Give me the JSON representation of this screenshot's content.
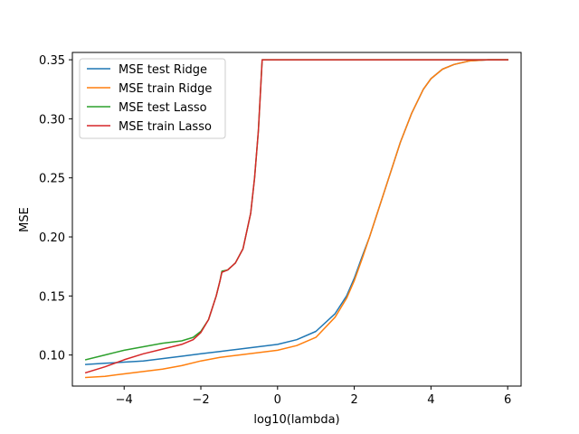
{
  "chart_data": {
    "type": "line",
    "title": "",
    "xlabel": "log10(lambda)",
    "ylabel": "MSE",
    "xlim": [
      -5.35,
      6.35
    ],
    "ylim": [
      0.0737,
      0.3562
    ],
    "xticks": [
      -4,
      -2,
      0,
      2,
      4,
      6
    ],
    "xtick_labels": [
      "−4",
      "−2",
      "0",
      "2",
      "4",
      "6"
    ],
    "yticks": [
      0.1,
      0.15,
      0.2,
      0.25,
      0.3,
      0.35
    ],
    "ytick_labels": [
      "0.10",
      "0.15",
      "0.20",
      "0.25",
      "0.30",
      "0.35"
    ],
    "grid": false,
    "legend_position": "top-left",
    "series": [
      {
        "name": "MSE test Ridge",
        "color": "#1f77b4",
        "x": [
          -5.0,
          -4.5,
          -4.0,
          -3.5,
          -3.0,
          -2.5,
          -2.0,
          -1.5,
          -1.0,
          -0.5,
          0.0,
          0.5,
          1.0,
          1.5,
          1.8,
          2.0,
          2.2,
          2.4,
          2.6,
          2.8,
          3.0,
          3.2,
          3.5,
          3.8,
          4.0,
          4.3,
          4.6,
          5.0,
          5.5,
          6.0
        ],
        "y": [
          0.092,
          0.093,
          0.094,
          0.095,
          0.097,
          0.099,
          0.101,
          0.103,
          0.105,
          0.107,
          0.109,
          0.113,
          0.12,
          0.135,
          0.15,
          0.165,
          0.183,
          0.2,
          0.22,
          0.24,
          0.26,
          0.28,
          0.305,
          0.325,
          0.334,
          0.342,
          0.346,
          0.349,
          0.35,
          0.35
        ]
      },
      {
        "name": "MSE train Ridge",
        "color": "#ff7f0e",
        "x": [
          -5.0,
          -4.5,
          -4.0,
          -3.5,
          -3.0,
          -2.5,
          -2.0,
          -1.5,
          -1.0,
          -0.5,
          0.0,
          0.5,
          1.0,
          1.5,
          1.8,
          2.0,
          2.2,
          2.4,
          2.6,
          2.8,
          3.0,
          3.2,
          3.5,
          3.8,
          4.0,
          4.3,
          4.6,
          5.0,
          5.5,
          6.0
        ],
        "y": [
          0.081,
          0.082,
          0.084,
          0.086,
          0.088,
          0.091,
          0.095,
          0.098,
          0.1,
          0.102,
          0.104,
          0.108,
          0.115,
          0.132,
          0.148,
          0.163,
          0.181,
          0.2,
          0.22,
          0.24,
          0.26,
          0.28,
          0.305,
          0.325,
          0.334,
          0.342,
          0.346,
          0.349,
          0.35,
          0.35
        ]
      },
      {
        "name": "MSE test Lasso",
        "color": "#2ca02c",
        "x": [
          -5.0,
          -4.5,
          -4.0,
          -3.5,
          -3.0,
          -2.5,
          -2.2,
          -2.0,
          -1.8,
          -1.6,
          -1.5,
          -1.45,
          -1.3,
          -1.1,
          -0.9,
          -0.7,
          -0.6,
          -0.5,
          -0.45,
          -0.4,
          0.0,
          1.0,
          2.0,
          3.0,
          4.0,
          5.0,
          6.0
        ],
        "y": [
          0.096,
          0.1,
          0.104,
          0.107,
          0.11,
          0.112,
          0.115,
          0.12,
          0.13,
          0.15,
          0.163,
          0.171,
          0.172,
          0.178,
          0.19,
          0.22,
          0.25,
          0.29,
          0.32,
          0.35,
          0.35,
          0.35,
          0.35,
          0.35,
          0.35,
          0.35,
          0.35
        ]
      },
      {
        "name": "MSE train Lasso",
        "color": "#d62728",
        "x": [
          -5.0,
          -4.5,
          -4.0,
          -3.5,
          -3.0,
          -2.5,
          -2.2,
          -2.0,
          -1.8,
          -1.6,
          -1.5,
          -1.45,
          -1.3,
          -1.1,
          -0.9,
          -0.7,
          -0.6,
          -0.5,
          -0.45,
          -0.4,
          0.0,
          1.0,
          2.0,
          3.0,
          4.0,
          5.0,
          6.0
        ],
        "y": [
          0.085,
          0.09,
          0.096,
          0.101,
          0.105,
          0.109,
          0.113,
          0.119,
          0.13,
          0.15,
          0.163,
          0.17,
          0.172,
          0.178,
          0.19,
          0.22,
          0.25,
          0.29,
          0.32,
          0.35,
          0.35,
          0.35,
          0.35,
          0.35,
          0.35,
          0.35,
          0.35
        ]
      }
    ]
  }
}
